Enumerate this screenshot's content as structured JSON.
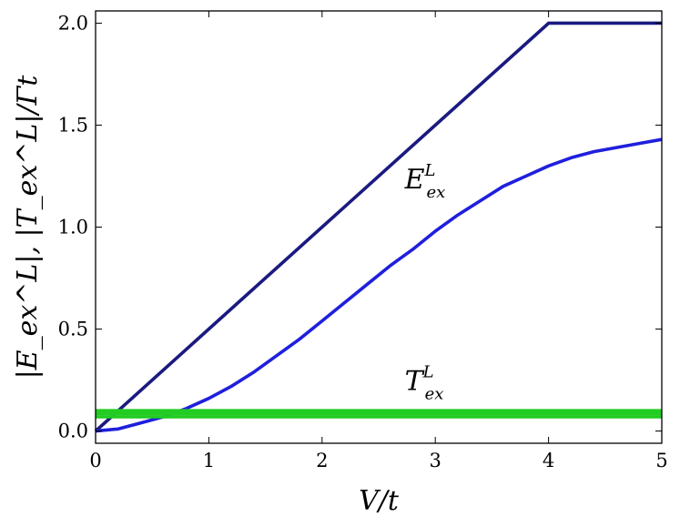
{
  "chart_data": {
    "type": "line",
    "title": "",
    "xlabel": "V/t",
    "ylabel": "|E_ex^L|, |T_ex^L|/Γt",
    "xlim": [
      0,
      5
    ],
    "ylim": [
      -0.06,
      2.06
    ],
    "xticks": [
      "0",
      "1",
      "2",
      "3",
      "4",
      "5"
    ],
    "yticks": [
      "0.0",
      "0.5",
      "1.0",
      "1.5",
      "2.0"
    ],
    "grid": false,
    "series": [
      {
        "color": "#1a1a80",
        "x": [
          0,
          0.2,
          1,
          2,
          3,
          3.99,
          4,
          4.5,
          5
        ],
        "y": [
          0,
          0.1,
          0.5,
          1.0,
          1.5,
          1.995,
          2.0,
          2.0,
          2.0
        ]
      },
      {
        "color": "#1f1fdd",
        "x": [
          0,
          0.2,
          0.4,
          0.6,
          0.8,
          1.0,
          1.2,
          1.4,
          1.6,
          1.8,
          2.0,
          2.2,
          2.4,
          2.6,
          2.8,
          3.0,
          3.2,
          3.4,
          3.6,
          3.8,
          4.0,
          4.2,
          4.4,
          4.6,
          4.8,
          5.0
        ],
        "y": [
          0.0,
          0.01,
          0.04,
          0.07,
          0.11,
          0.16,
          0.22,
          0.29,
          0.37,
          0.45,
          0.54,
          0.63,
          0.72,
          0.81,
          0.89,
          0.98,
          1.06,
          1.13,
          1.2,
          1.25,
          1.3,
          1.34,
          1.37,
          1.39,
          1.41,
          1.43
        ]
      },
      {
        "color": "#22cc22",
        "x": [
          0,
          5
        ],
        "y": [
          0.1,
          0.1
        ]
      },
      {
        "color": "#22cc22",
        "x": [
          0,
          5
        ],
        "y": [
          0.07,
          0.07
        ]
      },
      {
        "color": "#22cc22",
        "x": [
          0,
          5
        ],
        "y": [
          0.085,
          0.085
        ]
      }
    ],
    "annotations": [
      {
        "main": "E",
        "sup": "L",
        "sub": "ex",
        "x": 2.73,
        "y": 1.19
      },
      {
        "main": "T",
        "sup": "L",
        "sub": "ex",
        "x": 2.73,
        "y": 0.2
      }
    ]
  }
}
